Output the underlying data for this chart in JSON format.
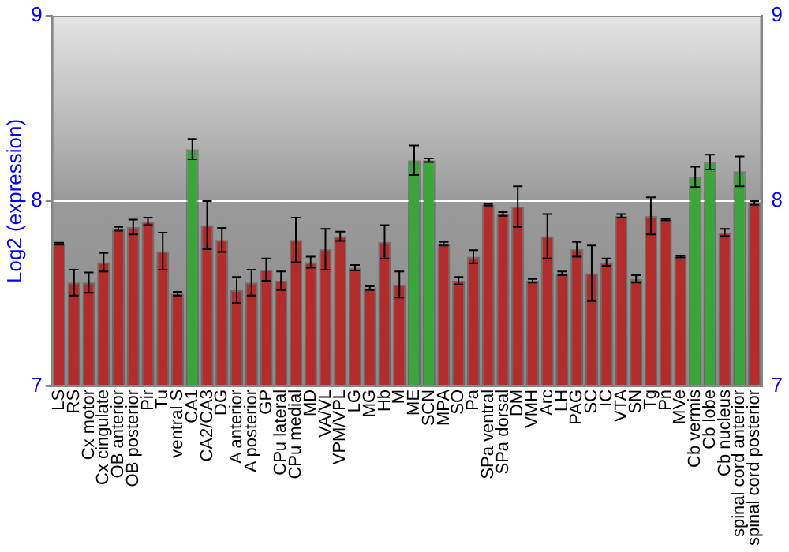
{
  "chart_data": {
    "type": "bar",
    "ylabel": "Log2 (expression)",
    "categories": [
      "LS",
      "RS",
      "Cx motor",
      "Cx cingulate",
      "OB anterior",
      "OB posterior",
      "Pir",
      "Tu",
      "ventral S",
      "CA1",
      "CA2/CA3",
      "DG",
      "A anterior",
      "A posterior",
      "GP",
      "CPu lateral",
      "CPu medial",
      "MD",
      "VA/VL",
      "VPM/VPL",
      "LG",
      "MG",
      "Hb",
      "M",
      "ME",
      "SCN",
      "MPA",
      "SO",
      "Pa",
      "SPa ventral",
      "SPa dorsal",
      "DM",
      "VMH",
      "Arc",
      "LH",
      "PAG",
      "SC",
      "IC",
      "VTA",
      "SN",
      "Tg",
      "Pn",
      "MVe",
      "Cb vermis",
      "Cb lobe",
      "Cb nucleus",
      "spinal cord anterior",
      "spinal cord posterior"
    ],
    "values": [
      7.77,
      7.56,
      7.56,
      7.67,
      7.85,
      7.86,
      7.89,
      7.73,
      7.5,
      8.28,
      7.87,
      7.79,
      7.52,
      7.56,
      7.63,
      7.57,
      7.79,
      7.67,
      7.74,
      7.81,
      7.64,
      7.53,
      7.78,
      7.55,
      8.22,
      8.22,
      7.77,
      7.57,
      7.7,
      7.98,
      7.93,
      7.97,
      7.57,
      7.81,
      7.61,
      7.74,
      7.61,
      7.67,
      7.92,
      7.58,
      7.92,
      7.9,
      7.7,
      8.13,
      8.21,
      7.83,
      8.16,
      7.99
    ],
    "errors": [
      0.005,
      0.07,
      0.055,
      0.05,
      0.01,
      0.04,
      0.02,
      0.1,
      0.01,
      0.055,
      0.13,
      0.065,
      0.07,
      0.07,
      0.06,
      0.05,
      0.12,
      0.03,
      0.11,
      0.025,
      0.015,
      0.01,
      0.09,
      0.07,
      0.08,
      0.01,
      0.01,
      0.02,
      0.035,
      0.005,
      0.01,
      0.11,
      0.01,
      0.12,
      0.01,
      0.04,
      0.15,
      0.02,
      0.01,
      0.02,
      0.1,
      0.005,
      0.005,
      0.055,
      0.04,
      0.02,
      0.08,
      0.01
    ],
    "colors": [
      "#b22c2c",
      "#b22c2c",
      "#b22c2c",
      "#b22c2c",
      "#b22c2c",
      "#b22c2c",
      "#b22c2c",
      "#b22c2c",
      "#b22c2c",
      "#3aa63a",
      "#b22c2c",
      "#b22c2c",
      "#b22c2c",
      "#b22c2c",
      "#b22c2c",
      "#b22c2c",
      "#b22c2c",
      "#b22c2c",
      "#b22c2c",
      "#b22c2c",
      "#b22c2c",
      "#b22c2c",
      "#b22c2c",
      "#b22c2c",
      "#3aa63a",
      "#3aa63a",
      "#b22c2c",
      "#b22c2c",
      "#b22c2c",
      "#b22c2c",
      "#b22c2c",
      "#b22c2c",
      "#b22c2c",
      "#b22c2c",
      "#b22c2c",
      "#b22c2c",
      "#b22c2c",
      "#b22c2c",
      "#b22c2c",
      "#b22c2c",
      "#b22c2c",
      "#b22c2c",
      "#b22c2c",
      "#3aa63a",
      "#3aa63a",
      "#b22c2c",
      "#3aa63a",
      "#b22c2c"
    ],
    "ylim": [
      7,
      9
    ],
    "yticks": [
      7,
      8,
      9
    ],
    "y2lim": [
      7,
      9
    ],
    "y2ticks": [
      7,
      8,
      9
    ],
    "grid": "y",
    "legend": false
  }
}
